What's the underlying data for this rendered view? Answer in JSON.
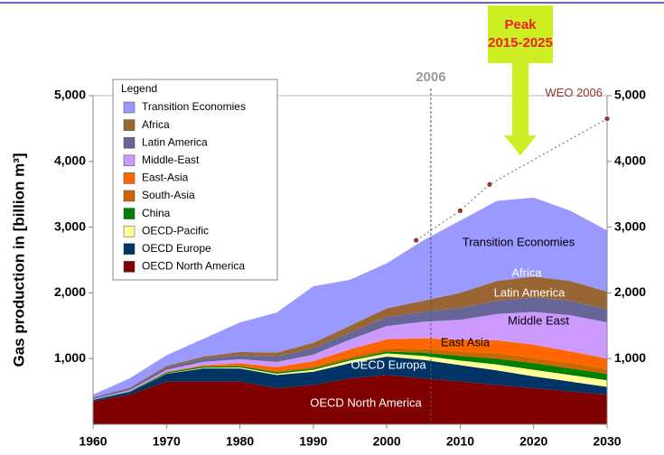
{
  "chart_data": {
    "type": "stacked_area",
    "y_label": "Gas production in [billion m³]",
    "legend_title": "Legend",
    "x": [
      1960,
      1965,
      1970,
      1975,
      1980,
      1985,
      1990,
      1995,
      2000,
      2005,
      2010,
      2015,
      2020,
      2025,
      2030
    ],
    "xlim": [
      1960,
      2030
    ],
    "xticks": [
      1960,
      1970,
      1980,
      1990,
      2000,
      2010,
      2020,
      2030
    ],
    "ylim": [
      0,
      5000
    ],
    "yticks": [
      {
        "value": 1000,
        "label": "1,000"
      },
      {
        "value": 2000,
        "label": "2,000"
      },
      {
        "value": 3000,
        "label": "3,000"
      },
      {
        "value": 4000,
        "label": "4,000"
      },
      {
        "value": 5000,
        "label": "5,000"
      }
    ],
    "series": [
      {
        "name": "OECD North America",
        "color": "#800000",
        "values": [
          350,
          450,
          650,
          650,
          650,
          550,
          600,
          700,
          750,
          700,
          650,
          600,
          550,
          500,
          450
        ]
      },
      {
        "name": "OECD Europe",
        "color": "#003366",
        "values": [
          20,
          40,
          120,
          200,
          200,
          200,
          200,
          230,
          280,
          280,
          250,
          220,
          180,
          150,
          120
        ]
      },
      {
        "name": "OECD-Pacific",
        "color": "#ffff99",
        "values": [
          0,
          0,
          5,
          10,
          15,
          20,
          30,
          40,
          50,
          60,
          70,
          90,
          100,
          100,
          100
        ]
      },
      {
        "name": "China",
        "color": "#008000",
        "values": [
          5,
          10,
          15,
          20,
          20,
          20,
          20,
          20,
          25,
          50,
          70,
          90,
          100,
          100,
          100
        ]
      },
      {
        "name": "South-Asia",
        "color": "#cc6600",
        "values": [
          0,
          0,
          5,
          10,
          15,
          20,
          30,
          40,
          50,
          60,
          70,
          80,
          80,
          80,
          70
        ]
      },
      {
        "name": "East-Asia",
        "color": "#ff6600",
        "values": [
          0,
          0,
          5,
          10,
          30,
          60,
          80,
          110,
          140,
          160,
          180,
          200,
          200,
          180,
          160
        ]
      },
      {
        "name": "Middle-East",
        "color": "#cc99ff",
        "values": [
          10,
          20,
          30,
          50,
          60,
          80,
          100,
          150,
          200,
          250,
          300,
          400,
          500,
          550,
          550
        ]
      },
      {
        "name": "Latin America",
        "color": "#666699",
        "values": [
          20,
          30,
          40,
          50,
          60,
          80,
          100,
          110,
          140,
          150,
          180,
          200,
          220,
          220,
          200
        ]
      },
      {
        "name": "Africa",
        "color": "#996633",
        "values": [
          5,
          10,
          20,
          30,
          50,
          60,
          80,
          100,
          130,
          170,
          230,
          300,
          320,
          300,
          270
        ]
      },
      {
        "name": "Transition Economies",
        "color": "#9999ff",
        "values": [
          40,
          140,
          160,
          270,
          450,
          610,
          860,
          700,
          685,
          920,
          1100,
          1220,
          1200,
          1070,
          930
        ]
      }
    ],
    "forecast": {
      "name": "WEO 2006",
      "color": "#993333",
      "x": [
        2004,
        2010,
        2014,
        2030
      ],
      "values": [
        2800,
        3250,
        3650,
        4650
      ]
    },
    "marker_year": {
      "value": 2006,
      "label": "2006"
    },
    "peak_title": "Peak",
    "peak_range": "2015-2025",
    "area_labels": [
      "OECD North America",
      "OECD Europa",
      "East Asia",
      "Middle East",
      "Latin America",
      "Africa",
      "Transition Economies"
    ]
  }
}
